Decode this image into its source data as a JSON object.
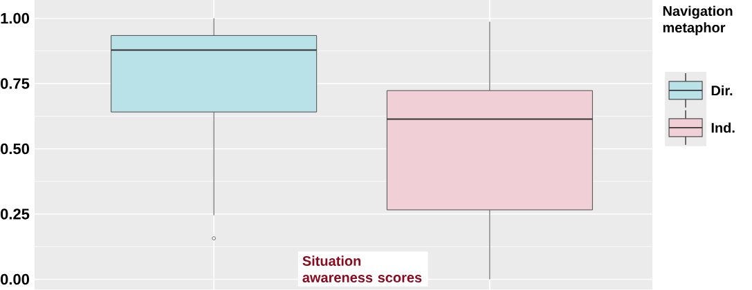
{
  "chart_data": {
    "type": "box",
    "categories": [
      null,
      null
    ],
    "series": [
      {
        "name": "Dir.",
        "color": "#b9e1e8",
        "boxes": [
          {
            "low": 0.245,
            "q1": 0.641,
            "median": 0.878,
            "q3": 0.934,
            "high": 1.0,
            "outliers": [
              0.157
            ]
          },
          null
        ]
      },
      {
        "name": "Ind.",
        "color": "#f1cfd6",
        "boxes": [
          null,
          {
            "low": 0.0,
            "q1": 0.266,
            "median": 0.614,
            "q3": 0.723,
            "high": 0.987
          }
        ]
      }
    ],
    "ylim": [
      -0.04,
      1.07
    ],
    "yticks": [
      {
        "value": 0,
        "label": "0.00"
      },
      {
        "value": 0.25,
        "label": "0.25"
      },
      {
        "value": 0.5,
        "label": "0.50"
      },
      {
        "value": 0.75,
        "label": "0.75"
      },
      {
        "value": 1,
        "label": "1.00"
      }
    ],
    "grid": true,
    "legend": "right",
    "legend_title": "Navigation metaphor",
    "annotations": [
      "Situation awareness scores"
    ],
    "tick_labels": "y"
  }
}
